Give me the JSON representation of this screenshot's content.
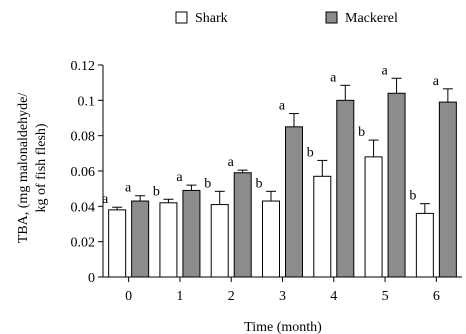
{
  "chart_data": {
    "type": "bar",
    "xlabel": "Time (month)",
    "ylabel_lines": [
      "TBA, (mg malonaldehyde/",
      "kg of fish flesh)"
    ],
    "categories": [
      "0",
      "1",
      "2",
      "3",
      "4",
      "5",
      "6"
    ],
    "ylim": [
      0,
      0.12
    ],
    "yticks": [
      "0",
      "0.02",
      "0.04",
      "0.06",
      "0.08",
      "0.1",
      "0.12"
    ],
    "ytick_values": [
      0,
      0.02,
      0.04,
      0.06,
      0.08,
      0.1,
      0.12
    ],
    "legend_position": "top",
    "series": [
      {
        "name": "Shark",
        "color": "#ffffff",
        "values": [
          0.038,
          0.042,
          0.041,
          0.043,
          0.057,
          0.068,
          0.036
        ],
        "errors": [
          0.0015,
          0.002,
          0.0075,
          0.0055,
          0.009,
          0.0095,
          0.0055
        ],
        "letters": [
          "a",
          "b",
          "b",
          "b",
          "b",
          "b",
          "b"
        ]
      },
      {
        "name": "Mackerel",
        "color": "#8c8c8c",
        "values": [
          0.043,
          0.049,
          0.059,
          0.085,
          0.1,
          0.104,
          0.099
        ],
        "errors": [
          0.003,
          0.003,
          0.0015,
          0.0075,
          0.0085,
          0.0085,
          0.0075
        ],
        "letters": [
          "a",
          "a",
          "a",
          "a",
          "a",
          "a",
          "a"
        ]
      }
    ]
  }
}
